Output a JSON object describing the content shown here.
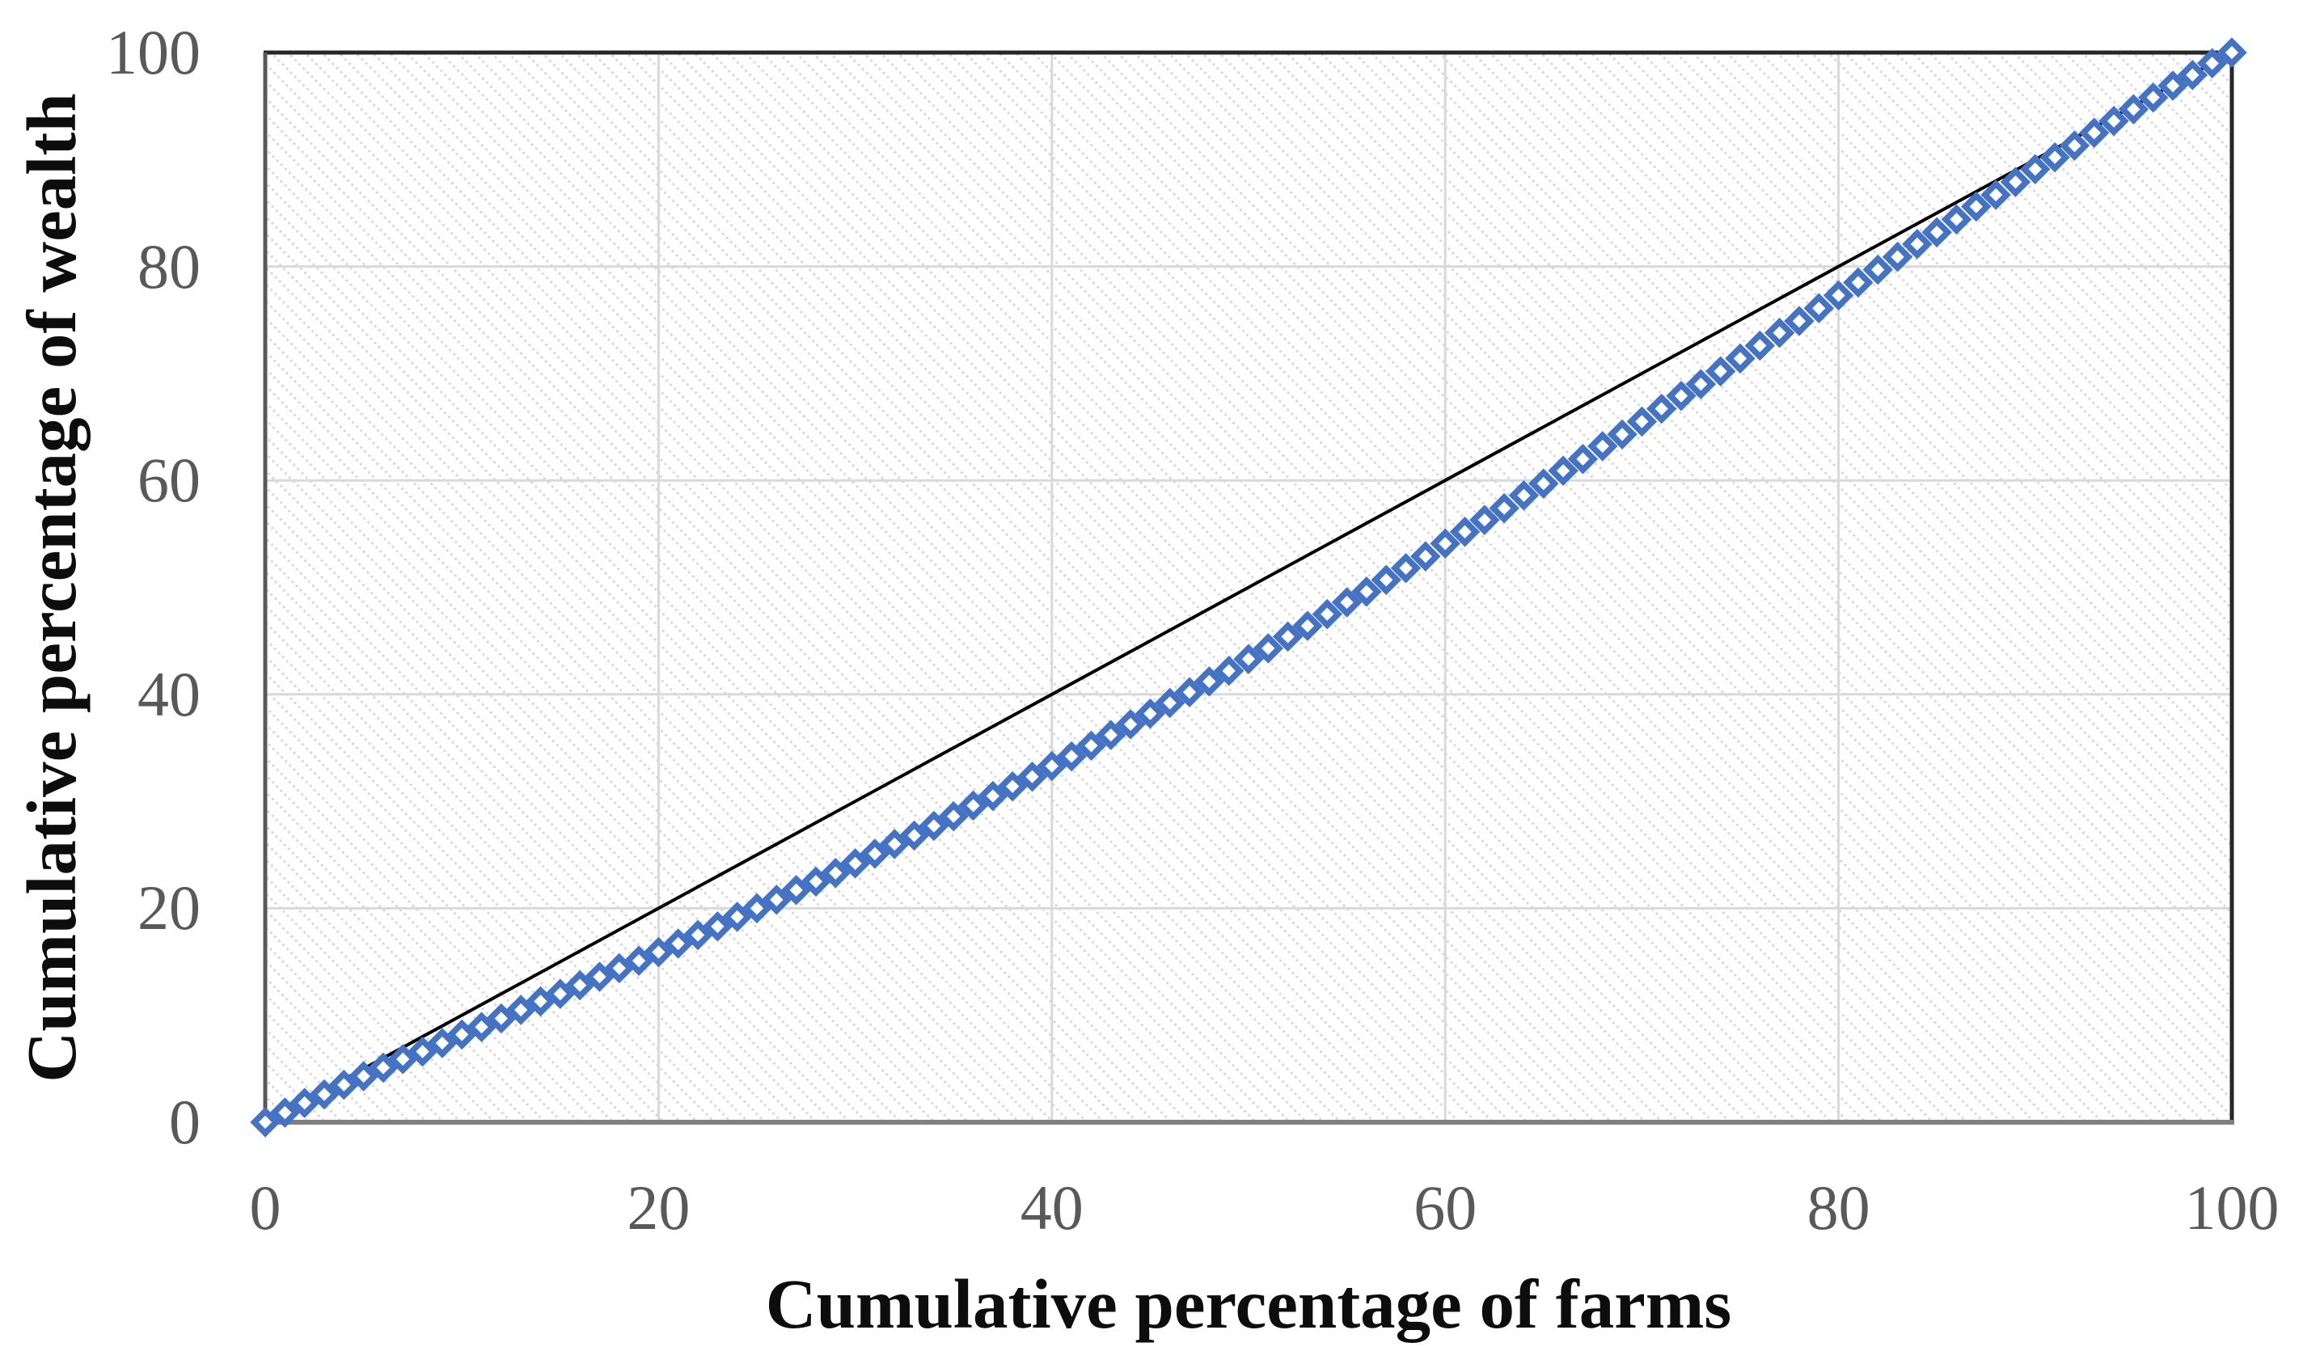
{
  "chart_data": {
    "type": "scatter",
    "title": "",
    "xlabel": "Cumulative percentage of farms",
    "ylabel": "Cumulative percentage of wealth",
    "xlim": [
      0,
      100
    ],
    "ylim": [
      0,
      100
    ],
    "x_ticks": [
      0,
      20,
      40,
      60,
      80,
      100
    ],
    "y_ticks": [
      0,
      20,
      40,
      60,
      80,
      100
    ],
    "grid": true,
    "legend": "none",
    "plot_background": "hatched-diagonal-dots",
    "series": [
      {
        "name": "line-of-equality",
        "type": "line",
        "color": "#000000",
        "points": [
          [
            0,
            0
          ],
          [
            100,
            100
          ]
        ]
      },
      {
        "name": "lorenz-curve",
        "type": "scatter",
        "marker": "diamond-open",
        "color": "#4472C4",
        "x": [
          0,
          1,
          2,
          3,
          4,
          5,
          6,
          7,
          8,
          9,
          10,
          11,
          12,
          13,
          14,
          15,
          16,
          17,
          18,
          19,
          20,
          21,
          22,
          23,
          24,
          25,
          26,
          27,
          28,
          29,
          30,
          31,
          32,
          33,
          34,
          35,
          36,
          37,
          38,
          39,
          40,
          41,
          42,
          43,
          44,
          45,
          46,
          47,
          48,
          49,
          50,
          51,
          52,
          53,
          54,
          55,
          56,
          57,
          58,
          59,
          60,
          61,
          62,
          63,
          64,
          65,
          66,
          67,
          68,
          69,
          70,
          71,
          72,
          73,
          74,
          75,
          76,
          77,
          78,
          79,
          80,
          81,
          82,
          83,
          84,
          85,
          86,
          87,
          88,
          89,
          90,
          91,
          92,
          93,
          94,
          95,
          96,
          97,
          98,
          99,
          100
        ],
        "y": [
          0,
          0.9,
          1.8,
          2.6,
          3.5,
          4.3,
          5.1,
          5.9,
          6.6,
          7.4,
          8.2,
          8.9,
          9.7,
          10.5,
          11.3,
          12.0,
          12.8,
          13.6,
          14.4,
          15.1,
          15.9,
          16.7,
          17.5,
          18.3,
          19.2,
          20.0,
          20.8,
          21.7,
          22.5,
          23.3,
          24.2,
          25.1,
          26.0,
          26.8,
          27.7,
          28.6,
          29.6,
          30.5,
          31.4,
          32.3,
          33.3,
          34.2,
          35.2,
          36.2,
          37.2,
          38.2,
          39.2,
          40.2,
          41.2,
          42.2,
          43.3,
          44.3,
          45.4,
          46.4,
          47.5,
          48.6,
          49.6,
          50.7,
          51.8,
          52.9,
          54.1,
          55.2,
          56.3,
          57.4,
          58.6,
          59.7,
          60.9,
          62.0,
          63.2,
          64.3,
          65.5,
          66.7,
          67.9,
          69.0,
          70.2,
          71.4,
          72.6,
          73.8,
          74.9,
          76.1,
          77.3,
          78.5,
          79.7,
          80.9,
          82.1,
          83.2,
          84.4,
          85.6,
          86.7,
          87.9,
          89.1,
          90.2,
          91.3,
          92.5,
          93.6,
          94.7,
          95.8,
          96.9,
          97.9,
          99.0,
          100
        ]
      }
    ],
    "colors": {
      "marker_stroke": "#4472C4",
      "marker_fill": "#ffffff",
      "equality_line": "#000000",
      "gridline": "#d9d9d9",
      "hatch_dot": "#d9d9d9",
      "frame_dark": "#262626",
      "frame_left": "#595959",
      "axis_line_bottom": "#808080",
      "tick_text": "#595959",
      "title_text": "#0d0d0d"
    }
  }
}
